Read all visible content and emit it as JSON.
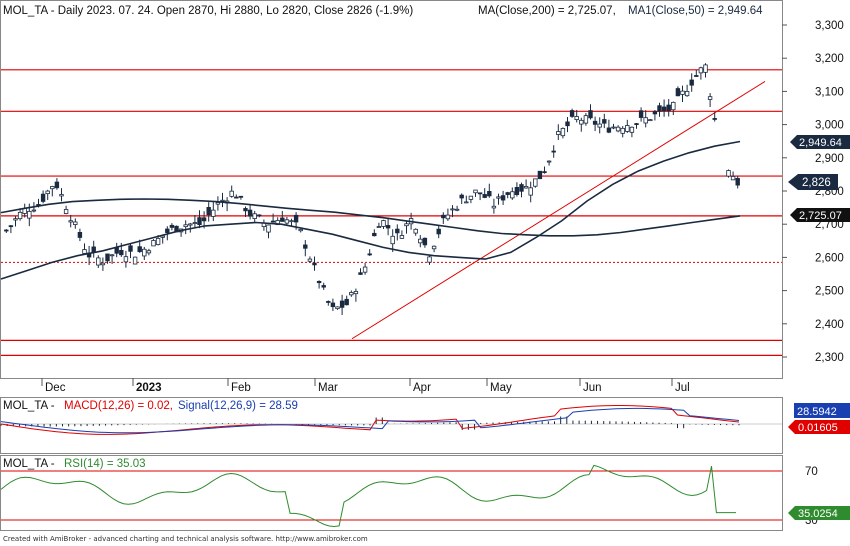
{
  "colors": {
    "level_line": "#e00000",
    "candle": "#1a2a40",
    "ma200": "#1a2a40",
    "ma50": "#1a2a40",
    "trendline": "#e00000",
    "macd": "#e00000",
    "signal": "#1a3fb0",
    "rsi": "#2e8b2e",
    "label_dark": "#1a2a40",
    "label_blue": "#1a3fb0",
    "label_red": "#e00000",
    "label_green": "#2e8b2e"
  },
  "header": {
    "ticker_info": "MOL_TA - Daily 2023. 07. 24. Open 2870, Hi 2880, Lo 2820, Close 2826 (-1.9%)",
    "ma200_text": "MA(Close,200) = 2,725.07,",
    "ma50_text": "MA1(Close,50) = 2,949.64"
  },
  "price_labels": {
    "ma50": "2,949.64",
    "close": "2,826",
    "ma200": "2,725.07"
  },
  "macd_header": {
    "name": "MOL_TA -",
    "macd_text": "MACD(12,26) = 0.02,",
    "signal_text": "Signal(12,26,9) = 28.59"
  },
  "macd_labels": {
    "signal": "28.5942",
    "macd": "0.01605"
  },
  "rsi_header": {
    "name": "MOL_TA -",
    "rsi_text": "RSI(14) = 35.03"
  },
  "rsi_label": "35.0254",
  "footer": "Created with AmiBroker - advanced charting and technical analysis software. http://www.amibroker.com",
  "chart_data": [
    {
      "type": "candlestick",
      "title": "MOL_TA - Daily 2023. 07. 24.",
      "x_ticks": [
        "Dec",
        "2023",
        "Feb",
        "Mar",
        "Apr",
        "May",
        "Jun",
        "Jul"
      ],
      "y_ticks": [
        2300,
        2400,
        2500,
        2600,
        2700,
        2800,
        2900,
        3000,
        3100,
        3200,
        3300
      ],
      "ylim": [
        2230,
        3330
      ],
      "horizontal_levels": [
        3165,
        3040,
        2845,
        2725,
        2350,
        2305
      ],
      "dotted_levels": [
        2585
      ],
      "trendline": {
        "from": [
          2355
        ],
        "to": [
          3130
        ]
      },
      "series": [
        {
          "name": "MA(Close,200)",
          "last": 2725.07,
          "values": [
            2735,
            2748,
            2760,
            2768,
            2772,
            2775,
            2776,
            2775,
            2772,
            2768,
            2762,
            2755,
            2748,
            2742,
            2736,
            2728,
            2720,
            2710,
            2700,
            2690,
            2680,
            2672,
            2668,
            2665,
            2665,
            2668,
            2675,
            2685,
            2695,
            2705,
            2715,
            2725
          ]
        },
        {
          "name": "MA1(Close,50)",
          "last": 2949.64,
          "values": [
            2535,
            2560,
            2585,
            2605,
            2620,
            2640,
            2660,
            2680,
            2695,
            2700,
            2705,
            2700,
            2685,
            2670,
            2650,
            2630,
            2615,
            2605,
            2600,
            2595,
            2615,
            2660,
            2710,
            2770,
            2820,
            2860,
            2890,
            2915,
            2935,
            2949
          ]
        },
        {
          "name": "Close",
          "last": 2826,
          "values": [
            2680,
            2740,
            2760,
            2830,
            2720,
            2610,
            2590,
            2620,
            2610,
            2640,
            2680,
            2700,
            2700,
            2760,
            2800,
            2730,
            2700,
            2720,
            2690,
            2560,
            2440,
            2460,
            2560,
            2720,
            2660,
            2720,
            2610,
            2720,
            2770,
            2800,
            2760,
            2800,
            2810,
            2850,
            2970,
            3020,
            3010,
            2990,
            3000,
            3010,
            3030,
            3050,
            3120,
            3180,
            2900,
            2826
          ]
        }
      ]
    },
    {
      "type": "line",
      "title": "MOL_TA - MACD(12,26) = 0.02, Signal(12,26,9) = 28.59",
      "series": [
        {
          "name": "MACD(12,26)",
          "last": 0.02
        },
        {
          "name": "Signal(12,26,9)",
          "last": 28.59
        }
      ]
    },
    {
      "type": "line",
      "title": "MOL_TA - RSI(14) = 35.03",
      "y_ticks": [
        30,
        70
      ],
      "levels": [
        30,
        70
      ],
      "series": [
        {
          "name": "RSI(14)",
          "last": 35.03
        }
      ]
    }
  ]
}
